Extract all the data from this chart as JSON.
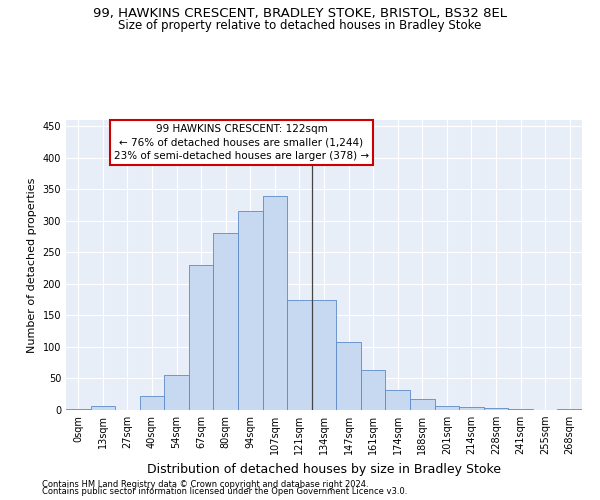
{
  "title_line1": "99, HAWKINS CRESCENT, BRADLEY STOKE, BRISTOL, BS32 8EL",
  "title_line2": "Size of property relative to detached houses in Bradley Stoke",
  "xlabel": "Distribution of detached houses by size in Bradley Stoke",
  "ylabel": "Number of detached properties",
  "bin_labels": [
    "0sqm",
    "13sqm",
    "27sqm",
    "40sqm",
    "54sqm",
    "67sqm",
    "80sqm",
    "94sqm",
    "107sqm",
    "121sqm",
    "134sqm",
    "147sqm",
    "161sqm",
    "174sqm",
    "188sqm",
    "201sqm",
    "214sqm",
    "228sqm",
    "241sqm",
    "255sqm",
    "268sqm"
  ],
  "bar_heights": [
    2,
    7,
    0,
    23,
    55,
    230,
    280,
    315,
    340,
    175,
    175,
    108,
    63,
    32,
    18,
    7,
    5,
    3,
    2,
    0,
    2
  ],
  "bar_color": "#c7d9f0",
  "bar_edge_color": "#5b8ac7",
  "vline_x": 9.5,
  "vline_color": "#444444",
  "annotation_title": "99 HAWKINS CRESCENT: 122sqm",
  "annotation_line2": "← 76% of detached houses are smaller (1,244)",
  "annotation_line3": "23% of semi-detached houses are larger (378) →",
  "annotation_box_color": "#ffffff",
  "annotation_box_edge": "#cc0000",
  "ylim": [
    0,
    460
  ],
  "yticks": [
    0,
    50,
    100,
    150,
    200,
    250,
    300,
    350,
    400,
    450
  ],
  "bg_color": "#e8eef8",
  "footer1": "Contains HM Land Registry data © Crown copyright and database right 2024.",
  "footer2": "Contains public sector information licensed under the Open Government Licence v3.0.",
  "title_fontsize": 9.5,
  "subtitle_fontsize": 8.5,
  "xlabel_fontsize": 9,
  "ylabel_fontsize": 8,
  "tick_fontsize": 7,
  "annotation_fontsize": 7.5,
  "footer_fontsize": 6
}
